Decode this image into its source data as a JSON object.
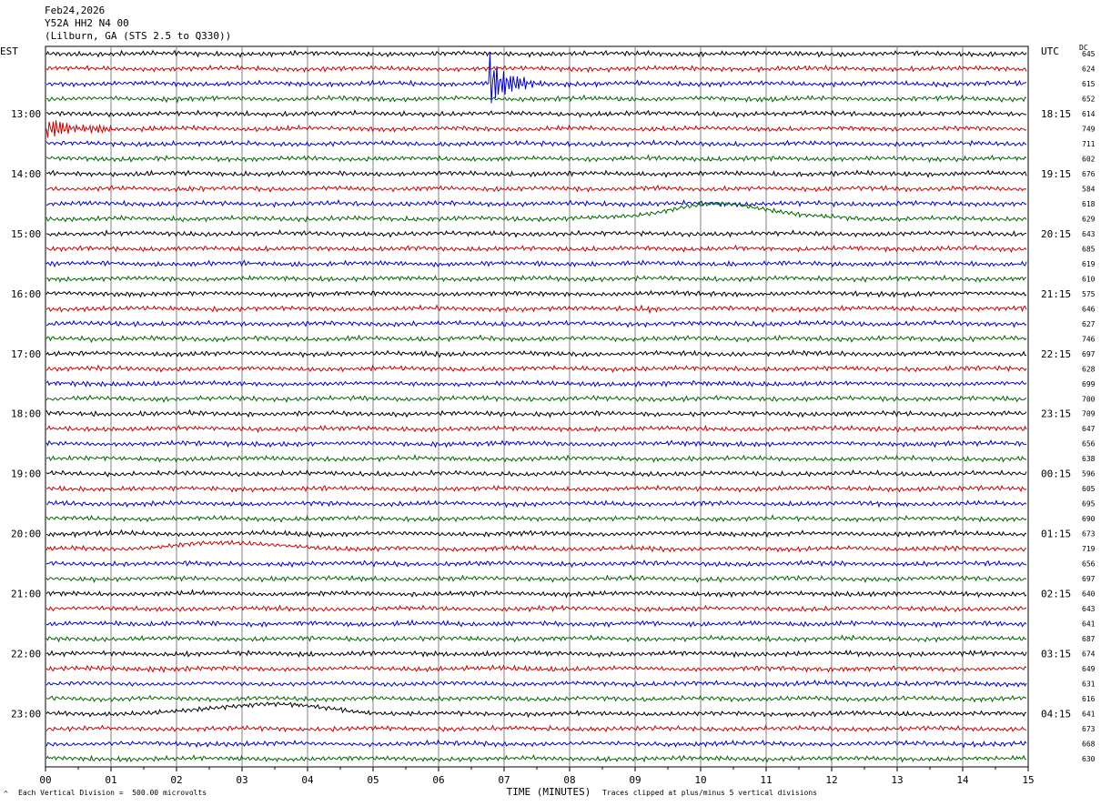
{
  "header": {
    "date": "Feb24,2026",
    "channel": "Y52A HH2 N4 00",
    "station": "(Lilburn, GA (STS 2.5 to Q330))"
  },
  "left_axis_title": "EST",
  "right_axis_title": "UTC",
  "dc_title": "DC",
  "footer": {
    "scale_note": "Each Vertical Division =  500.00 microvolts",
    "clip_note": "Traces clipped at plus/minus 5 vertical divisions",
    "corner_mark": "^"
  },
  "colors": {
    "black": "#000000",
    "red": "#cc0000",
    "blue": "#0000cc",
    "green": "#006600",
    "grid": "#808080"
  },
  "chart_data": {
    "type": "line",
    "xlabel": "TIME (MINUTES)",
    "xlim": [
      0,
      15
    ],
    "x_ticks": [
      "00",
      "01",
      "02",
      "03",
      "04",
      "05",
      "06",
      "07",
      "08",
      "09",
      "10",
      "11",
      "12",
      "13",
      "14",
      "15"
    ],
    "trace_colors": [
      "black",
      "red",
      "blue",
      "green"
    ],
    "rows": 48,
    "est_labels": [
      {
        "row": 4,
        "label": "13:00"
      },
      {
        "row": 8,
        "label": "14:00"
      },
      {
        "row": 12,
        "label": "15:00"
      },
      {
        "row": 16,
        "label": "16:00"
      },
      {
        "row": 20,
        "label": "17:00"
      },
      {
        "row": 24,
        "label": "18:00"
      },
      {
        "row": 28,
        "label": "19:00"
      },
      {
        "row": 32,
        "label": "20:00"
      },
      {
        "row": 36,
        "label": "21:00"
      },
      {
        "row": 40,
        "label": "22:00"
      },
      {
        "row": 44,
        "label": "23:00"
      }
    ],
    "utc_labels": [
      {
        "row": 4,
        "label": "18:15"
      },
      {
        "row": 8,
        "label": "19:15"
      },
      {
        "row": 12,
        "label": "20:15"
      },
      {
        "row": 16,
        "label": "21:15"
      },
      {
        "row": 20,
        "label": "22:15"
      },
      {
        "row": 24,
        "label": "23:15"
      },
      {
        "row": 28,
        "label": "00:15"
      },
      {
        "row": 32,
        "label": "01:15"
      },
      {
        "row": 36,
        "label": "02:15"
      },
      {
        "row": 40,
        "label": "03:15"
      },
      {
        "row": 44,
        "label": "04:15"
      }
    ],
    "dc_offsets": [
      "645",
      "624",
      "615",
      "652",
      "614",
      "749",
      "711",
      "602",
      "676",
      "584",
      "618",
      "629",
      "643",
      "685",
      "619",
      "610",
      "575",
      "646",
      "627",
      "746",
      "697",
      "628",
      "699",
      "700",
      "709",
      "647",
      "656",
      "638",
      "596",
      "605",
      "695",
      "690",
      "673",
      "719",
      "656",
      "697",
      "640",
      "643",
      "641",
      "687",
      "674",
      "649",
      "631",
      "616",
      "641",
      "673",
      "668",
      "630"
    ],
    "events": [
      {
        "row": 2,
        "minute": 6.8,
        "amp": 28,
        "decay": 0.35,
        "kind": "spike"
      },
      {
        "row": 5,
        "minute": 0.05,
        "amp": 12,
        "decay": 0.6,
        "kind": "burst"
      },
      {
        "row": 11,
        "minute": 10.3,
        "amp": -16,
        "width": 1.1,
        "kind": "bump"
      },
      {
        "row": 17,
        "minute": 9.1,
        "amp": 5,
        "decay": 0.4,
        "kind": "burst"
      },
      {
        "row": 33,
        "minute": 2.8,
        "amp": -7,
        "width": 0.9,
        "kind": "bump"
      },
      {
        "row": 44,
        "minute": 3.4,
        "amp": -11,
        "width": 1.1,
        "kind": "bump"
      }
    ]
  }
}
